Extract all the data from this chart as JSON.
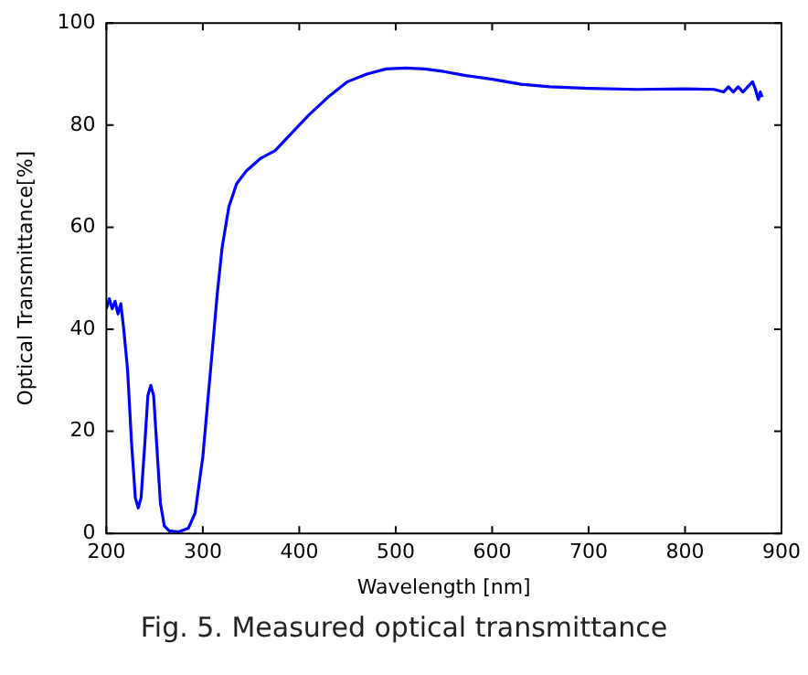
{
  "chart_data": {
    "type": "line",
    "xlabel": "Wavelength [nm]",
    "ylabel": "Optical Transmittance[%]",
    "annotations": [
      "Fig. 5. Measured optical transmittance"
    ],
    "xlim": [
      200,
      900
    ],
    "xticks": [
      200,
      300,
      400,
      500,
      600,
      700,
      800,
      900
    ],
    "ylim": [
      0,
      100
    ],
    "yticks": [
      0,
      20,
      40,
      60,
      80,
      100
    ],
    "grid": false,
    "legend": false,
    "marker": "none",
    "line_style": "solid",
    "series": [
      {
        "color": "#0000ff",
        "x": [
          200,
          203,
          206,
          209,
          212,
          215,
          218,
          222,
          226,
          230,
          233,
          236,
          240,
          243,
          246,
          249,
          252,
          256,
          260,
          265,
          275,
          285,
          292,
          300,
          308,
          315,
          320,
          327,
          335,
          345,
          360,
          375,
          390,
          410,
          430,
          450,
          470,
          490,
          510,
          530,
          550,
          570,
          600,
          630,
          660,
          700,
          750,
          800,
          830,
          840,
          845,
          850,
          855,
          860,
          865,
          870,
          873,
          876,
          878,
          880
        ],
        "values": [
          44,
          46,
          44,
          45.5,
          43,
          45,
          40,
          32,
          18,
          7,
          5,
          7,
          18,
          27,
          29,
          27,
          18,
          6,
          1.5,
          0.5,
          0.3,
          1,
          4,
          15,
          32,
          47,
          56,
          64,
          68.5,
          71,
          73.5,
          75,
          78,
          82,
          85.5,
          88.5,
          90,
          91,
          91.2,
          91,
          90.5,
          89.8,
          89,
          88,
          87.5,
          87.2,
          87,
          87.1,
          87,
          86.5,
          87.5,
          86.5,
          87.5,
          86.5,
          87.5,
          88.5,
          87,
          85,
          86.5,
          85.5
        ]
      }
    ]
  }
}
